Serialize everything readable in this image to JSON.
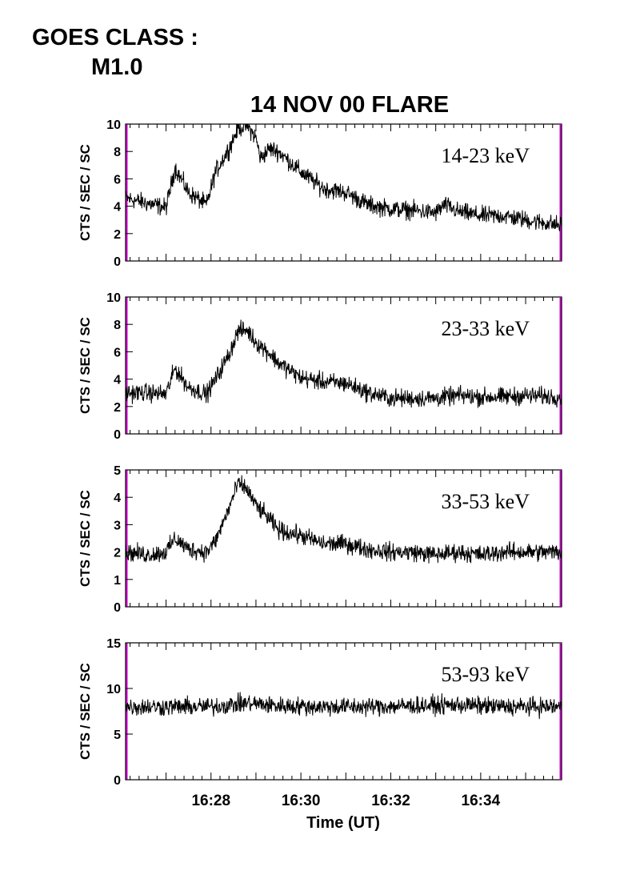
{
  "header": {
    "goes_line1": "GOES CLASS :",
    "goes_line2": "M1.0"
  },
  "chart_data": {
    "type": "line",
    "title": "14 NOV 00 FLARE",
    "xlabel": "Time (UT)",
    "x_ticks": [
      "16:28",
      "16:30",
      "16:32",
      "16:34"
    ],
    "xlim_minutes_after_16_00": [
      26.1,
      35.8
    ],
    "line_color": "#000000",
    "edge_color": "#cc00cc",
    "grid": false,
    "panels": [
      {
        "label": "14-23 keV",
        "ylabel": "CTS / SEC / SC",
        "ylim": [
          0,
          10
        ],
        "yticks": [
          "0",
          "2",
          "4",
          "6",
          "8",
          "10"
        ],
        "x": [
          "16:26.1",
          "16:26.6",
          "16:27.0",
          "16:27.2",
          "16:27.5",
          "16:27.9",
          "16:28.1",
          "16:28.4",
          "16:28.6",
          "16:28.8",
          "16:29.0",
          "16:29.1",
          "16:29.3",
          "16:29.5",
          "16:30.0",
          "16:30.5",
          "16:31.0",
          "16:31.5",
          "16:32.0",
          "16:32.5",
          "16:33.0",
          "16:33.2",
          "16:33.5",
          "16:34.0",
          "16:34.5",
          "16:35.0",
          "16:35.8"
        ],
        "values": [
          4.6,
          4.2,
          3.9,
          6.8,
          5.0,
          4.1,
          6.5,
          8.2,
          9.7,
          9.9,
          9.0,
          7.5,
          8.2,
          8.0,
          6.5,
          5.3,
          5.0,
          4.1,
          3.8,
          3.7,
          3.5,
          4.1,
          3.6,
          3.3,
          3.3,
          3.0,
          2.6
        ]
      },
      {
        "label": "23-33 keV",
        "ylabel": "CTS / SEC / SC",
        "ylim": [
          0,
          10
        ],
        "yticks": [
          "0",
          "2",
          "4",
          "6",
          "8",
          "10"
        ],
        "x": [
          "16:26.1",
          "16:26.6",
          "16:27.0",
          "16:27.2",
          "16:27.5",
          "16:27.9",
          "16:28.1",
          "16:28.4",
          "16:28.6",
          "16:28.8",
          "16:29.0",
          "16:29.3",
          "16:29.5",
          "16:30.0",
          "16:30.5",
          "16:31.0",
          "16:31.5",
          "16:32.0",
          "16:32.5",
          "16:33.0",
          "16:33.5",
          "16:34.0",
          "16:34.5",
          "16:35.0",
          "16:35.8"
        ],
        "values": [
          3.0,
          3.0,
          2.9,
          4.8,
          3.4,
          2.9,
          4.0,
          5.8,
          7.5,
          7.6,
          6.7,
          5.9,
          5.2,
          4.1,
          3.8,
          3.7,
          3.0,
          2.6,
          2.6,
          2.6,
          2.8,
          2.7,
          2.7,
          2.8,
          2.7
        ]
      },
      {
        "label": "33-53 keV",
        "ylabel": "CTS / SEC / SC",
        "ylim": [
          0,
          5
        ],
        "yticks": [
          "0",
          "1",
          "2",
          "3",
          "4",
          "5"
        ],
        "x": [
          "16:26.1",
          "16:26.6",
          "16:27.0",
          "16:27.2",
          "16:27.5",
          "16:27.9",
          "16:28.1",
          "16:28.4",
          "16:28.6",
          "16:28.8",
          "16:29.0",
          "16:29.3",
          "16:29.5",
          "16:30.0",
          "16:30.5",
          "16:31.0",
          "16:31.5",
          "16:32.0",
          "16:32.5",
          "16:33.0",
          "16:33.5",
          "16:34.0",
          "16:34.5",
          "16:35.0",
          "16:35.8"
        ],
        "values": [
          2.0,
          1.9,
          2.0,
          2.5,
          2.1,
          2.0,
          2.4,
          3.6,
          4.5,
          4.3,
          3.7,
          3.2,
          2.8,
          2.6,
          2.3,
          2.3,
          2.1,
          2.0,
          2.0,
          1.9,
          2.0,
          1.9,
          2.0,
          2.0,
          2.0
        ]
      },
      {
        "label": "53-93 keV",
        "ylabel": "CTS / SEC / SC",
        "ylim": [
          0,
          15
        ],
        "yticks": [
          "0",
          "5",
          "10",
          "15"
        ],
        "x": [
          "16:26.1",
          "16:27.0",
          "16:28.0",
          "16:28.8",
          "16:29.5",
          "16:30.5",
          "16:31.5",
          "16:32.5",
          "16:33.5",
          "16:34.5",
          "16:35.8"
        ],
        "values": [
          8.0,
          8.0,
          8.0,
          8.4,
          8.1,
          8.0,
          8.0,
          8.1,
          8.2,
          8.0,
          8.0
        ]
      }
    ]
  }
}
